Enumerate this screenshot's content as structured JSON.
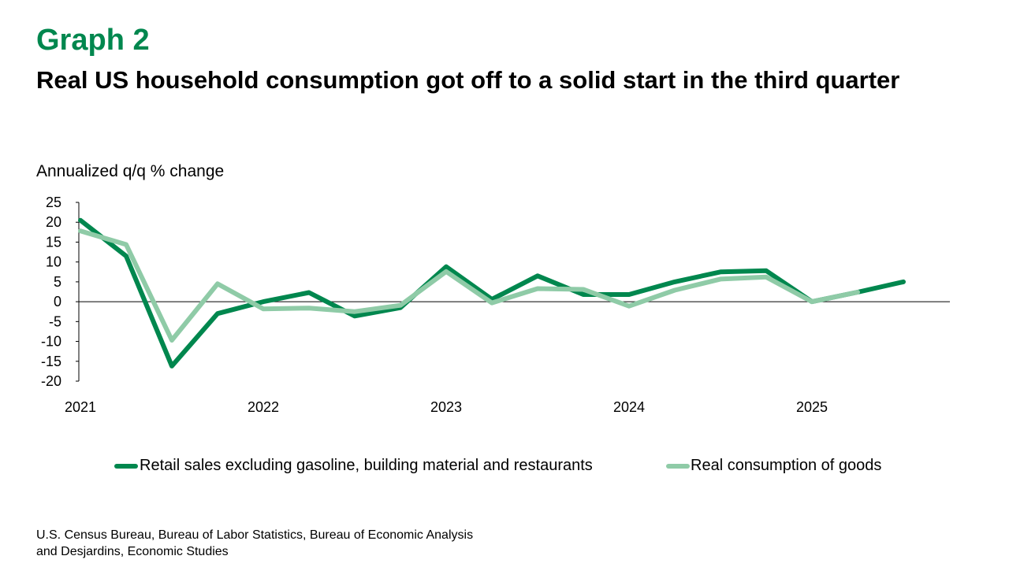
{
  "header": {
    "graph_label": "Graph 2",
    "title": "Real US household consumption got off to a solid start in the third quarter"
  },
  "unit_label": "Annualized q/q % change",
  "source": {
    "line1": "U.S. Census Bureau, Bureau of Labor Statistics, Bureau of Economic Analysis",
    "line2": "and Desjardins, Economic Studies"
  },
  "colors": {
    "brand_green": "#00874E",
    "retail_series": "#00874E",
    "goods_series": "#8FCBA7"
  },
  "chart_data": {
    "type": "line",
    "ylim": [
      -20,
      25
    ],
    "y_ticks": [
      25,
      20,
      15,
      10,
      5,
      0,
      -5,
      -10,
      -15,
      -20
    ],
    "x_tick_labels": [
      "2021",
      "2022",
      "2023",
      "2024",
      "2025"
    ],
    "x": [
      "2021Q1",
      "2021Q2",
      "2021Q3",
      "2021Q4",
      "2022Q1",
      "2022Q2",
      "2022Q3",
      "2022Q4",
      "2023Q1",
      "2023Q2",
      "2023Q3",
      "2023Q4",
      "2024Q1",
      "2024Q2",
      "2024Q3",
      "2024Q4",
      "2025Q1",
      "2025Q2",
      "2025Q3"
    ],
    "grid": false,
    "legend_position": "bottom",
    "series": [
      {
        "name": "Retail sales excluding gasoline, building material and restaurants",
        "color": "#00874E",
        "values": [
          20.5,
          11.5,
          -16.2,
          -3.0,
          0.0,
          2.3,
          -3.6,
          -1.5,
          8.8,
          0.6,
          6.5,
          1.8,
          1.8,
          5.0,
          7.5,
          7.8,
          0.0,
          2.4,
          5.0
        ]
      },
      {
        "name": "Real consumption of goods",
        "color": "#8FCBA7",
        "values": [
          17.8,
          14.4,
          -9.7,
          4.5,
          -1.8,
          -1.6,
          -2.5,
          -0.9,
          7.6,
          -0.3,
          3.3,
          3.1,
          -1.1,
          2.9,
          5.7,
          6.2,
          0.0,
          2.4,
          null
        ]
      }
    ]
  }
}
